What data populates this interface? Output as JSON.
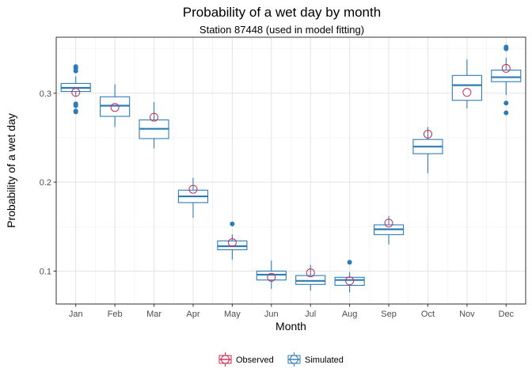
{
  "chart_data": {
    "type": "boxplot",
    "title": "Probability of a wet day by month",
    "subtitle": "Station 87448 (used in model fitting)",
    "xlabel": "Month",
    "ylabel": "Probability of a wet day",
    "categories": [
      "Jan",
      "Feb",
      "Mar",
      "Apr",
      "May",
      "Jun",
      "Jul",
      "Aug",
      "Sep",
      "Oct",
      "Nov",
      "Dec"
    ],
    "ylim": [
      0.063,
      0.363
    ],
    "yticks": [
      0.1,
      0.2,
      0.3
    ],
    "ytick_labels": [
      "0.1",
      "0.2",
      "0.3"
    ],
    "grid": true,
    "legend_position": "bottom",
    "series": [
      {
        "name": "Observed",
        "color": "#cc2b4f",
        "values": [
          0.301,
          0.284,
          0.273,
          0.192,
          0.132,
          0.093,
          0.098,
          0.089,
          0.154,
          0.254,
          0.301,
          0.328
        ]
      },
      {
        "name": "Simulated",
        "color": "#2c7bb6",
        "boxes": [
          {
            "low": 0.297,
            "q1": 0.302,
            "median": 0.306,
            "q3": 0.311,
            "high": 0.319,
            "outliers": [
              0.33,
              0.328,
              0.325,
              0.288,
              0.286,
              0.28,
              0.279
            ]
          },
          {
            "low": 0.262,
            "q1": 0.274,
            "median": 0.286,
            "q3": 0.296,
            "high": 0.31,
            "outliers": []
          },
          {
            "low": 0.238,
            "q1": 0.249,
            "median": 0.26,
            "q3": 0.27,
            "high": 0.29,
            "outliers": []
          },
          {
            "low": 0.16,
            "q1": 0.177,
            "median": 0.184,
            "q3": 0.191,
            "high": 0.205,
            "outliers": []
          },
          {
            "low": 0.113,
            "q1": 0.124,
            "median": 0.128,
            "q3": 0.134,
            "high": 0.141,
            "outliers": [
              0.153
            ]
          },
          {
            "low": 0.08,
            "q1": 0.09,
            "median": 0.096,
            "q3": 0.1,
            "high": 0.112,
            "outliers": []
          },
          {
            "low": 0.078,
            "q1": 0.085,
            "median": 0.089,
            "q3": 0.095,
            "high": 0.107,
            "outliers": []
          },
          {
            "low": 0.076,
            "q1": 0.084,
            "median": 0.09,
            "q3": 0.093,
            "high": 0.099,
            "outliers": [
              0.11
            ]
          },
          {
            "low": 0.13,
            "q1": 0.141,
            "median": 0.147,
            "q3": 0.152,
            "high": 0.162,
            "outliers": []
          },
          {
            "low": 0.21,
            "q1": 0.232,
            "median": 0.24,
            "q3": 0.248,
            "high": 0.262,
            "outliers": []
          },
          {
            "low": 0.283,
            "q1": 0.292,
            "median": 0.309,
            "q3": 0.32,
            "high": 0.338,
            "outliers": []
          },
          {
            "low": 0.298,
            "q1": 0.313,
            "median": 0.318,
            "q3": 0.326,
            "high": 0.34,
            "outliers": [
              0.352,
              0.35,
              0.289,
              0.278
            ]
          }
        ]
      }
    ]
  }
}
